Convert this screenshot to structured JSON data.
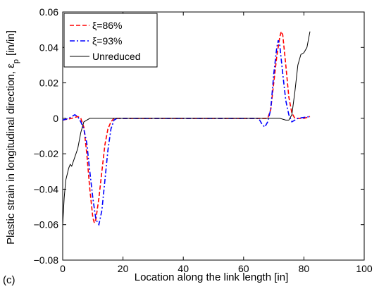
{
  "panel_label": "(c)",
  "chart_data": {
    "type": "line",
    "title": "",
    "xlabel": "Location along the link length [in]",
    "ylabel": "Plastic strain in longitudinal direction, ε",
    "ylabel_sub": "p",
    "ylabel_unit": "[in/in]",
    "xlim": [
      0,
      100
    ],
    "ylim": [
      -0.08,
      0.06
    ],
    "x_ticks": [
      0,
      20,
      40,
      60,
      80,
      100
    ],
    "x_tick_labels": [
      "0",
      "20",
      "40",
      "60",
      "80",
      "100"
    ],
    "y_ticks": [
      -0.08,
      -0.06,
      -0.04,
      -0.02,
      0,
      0.02,
      0.04,
      0.06
    ],
    "y_tick_labels": [
      "−0.08",
      "−0.06",
      "−0.04",
      "−0.02",
      "0",
      "0.02",
      "0.04",
      "0.06"
    ],
    "grid": false,
    "legend_position": "top-left",
    "series": [
      {
        "name": "ξ=86%",
        "color": "#ff0000",
        "dash": "dashed",
        "points": [
          [
            0,
            -0.001
          ],
          [
            3,
            0
          ],
          [
            5,
            0.001
          ],
          [
            6,
            0
          ],
          [
            7,
            -0.005
          ],
          [
            8,
            -0.02
          ],
          [
            9,
            -0.04
          ],
          [
            10,
            -0.056
          ],
          [
            10.5,
            -0.059
          ],
          [
            11,
            -0.057
          ],
          [
            12,
            -0.045
          ],
          [
            13,
            -0.03
          ],
          [
            14,
            -0.015
          ],
          [
            15,
            -0.006
          ],
          [
            16,
            -0.002
          ],
          [
            17,
            0
          ],
          [
            60,
            0
          ],
          [
            66,
            0
          ],
          [
            68,
            0
          ],
          [
            69,
            0.005
          ],
          [
            70,
            0.02
          ],
          [
            71,
            0.035
          ],
          [
            72,
            0.046
          ],
          [
            72.5,
            0.049
          ],
          [
            73,
            0.047
          ],
          [
            74,
            0.03
          ],
          [
            75,
            0.012
          ],
          [
            76,
            0.003
          ],
          [
            77,
            0
          ],
          [
            80,
            0
          ],
          [
            82,
            0.001
          ]
        ]
      },
      {
        "name": "ξ=93%",
        "color": "#0000ff",
        "dash": "dashdot",
        "points": [
          [
            0,
            -0.001
          ],
          [
            2,
            0
          ],
          [
            4,
            0.002
          ],
          [
            5,
            0.001
          ],
          [
            6,
            -0.002
          ],
          [
            7,
            -0.006
          ],
          [
            8,
            -0.014
          ],
          [
            9,
            -0.03
          ],
          [
            10,
            -0.045
          ],
          [
            11,
            -0.057
          ],
          [
            12,
            -0.06
          ],
          [
            13,
            -0.052
          ],
          [
            14,
            -0.035
          ],
          [
            15,
            -0.018
          ],
          [
            16,
            -0.006
          ],
          [
            17,
            -0.001
          ],
          [
            18,
            0
          ],
          [
            60,
            0
          ],
          [
            65,
            0
          ],
          [
            66,
            -0.003
          ],
          [
            67,
            -0.005
          ],
          [
            68,
            -0.002
          ],
          [
            69,
            0.005
          ],
          [
            70,
            0.025
          ],
          [
            71,
            0.04
          ],
          [
            71.5,
            0.044
          ],
          [
            72,
            0.041
          ],
          [
            73,
            0.025
          ],
          [
            74,
            0.01
          ],
          [
            75,
            0.002
          ],
          [
            76,
            -0.002
          ],
          [
            78,
            0
          ],
          [
            82,
            0.001
          ]
        ]
      },
      {
        "name": "Unreduced",
        "color": "#000000",
        "dash": "solid",
        "points": [
          [
            0,
            -0.06
          ],
          [
            0.5,
            -0.045
          ],
          [
            1,
            -0.035
          ],
          [
            2,
            -0.028
          ],
          [
            2.5,
            -0.026
          ],
          [
            3,
            -0.027
          ],
          [
            4,
            -0.022
          ],
          [
            5,
            -0.017
          ],
          [
            6,
            -0.008
          ],
          [
            7,
            -0.002
          ],
          [
            8,
            -0.001
          ],
          [
            9,
            0
          ],
          [
            60,
            0
          ],
          [
            72,
            0
          ],
          [
            74,
            -0.001
          ],
          [
            75,
            -0.001
          ],
          [
            76,
            0.002
          ],
          [
            77,
            0.015
          ],
          [
            78,
            0.03
          ],
          [
            79,
            0.036
          ],
          [
            80,
            0.037
          ],
          [
            81,
            0.04
          ],
          [
            82,
            0.049
          ]
        ]
      }
    ]
  }
}
